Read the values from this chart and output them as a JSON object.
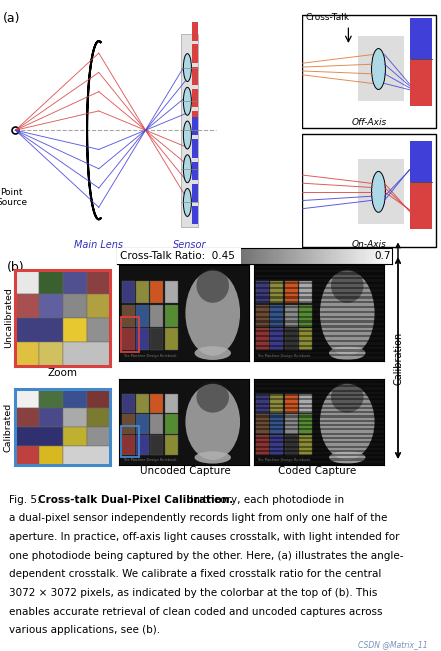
{
  "bg_color": "#ffffff",
  "fig_width": 4.41,
  "fig_height": 6.51,
  "caption_bold": "Cross-talk Dual-Pixel Calibration.",
  "caption_line1": " In theory, each photodiode in",
  "caption_line2": "a dual-pixel sensor independently records light from only one half of the",
  "caption_line3": "aperture. In practice, off-axis light causes crosstalk, with light intended for",
  "caption_line4": "one photodiode being captured by the other. Here, (a) illustrates the angle-",
  "caption_line5": "dependent crosstalk. We calibrate a fixed crosstalk ratio for the central",
  "caption_line6": "3072 × 3072 pixels, as indicated by the colorbar at the top of (b). This",
  "caption_line7": "enables accurate retrieval of clean coded and uncoded captures across",
  "caption_line8": "various applications, see (b).",
  "fig_label": "Fig. 5.",
  "watermark": "CSDN @Matrix_11",
  "label_a": "(a)",
  "label_b": "(b)",
  "point_source_label": "Point\nSource",
  "main_lens_label": "Main Lens",
  "sensor_label": "Sensor",
  "off_axis_label": "Off-Axis",
  "on_axis_label": "On-Axis",
  "cross_talk_label": "Cross-Talk",
  "colorbar_label": "Cross-Talk Ratio:  0.45",
  "colorbar_right": "0.7",
  "uncalibrated_label": "Uncalibrated",
  "calibrated_label": "Calibrated",
  "zoom_label": "Zoom",
  "uncoded_label": "Uncoded Capture",
  "coded_label": "Coded Capture",
  "calibration_label": "Calibration",
  "red_color": "#d94040",
  "blue_color": "#4040d9",
  "light_blue": "#add8e6",
  "orange_color": "#e08040"
}
